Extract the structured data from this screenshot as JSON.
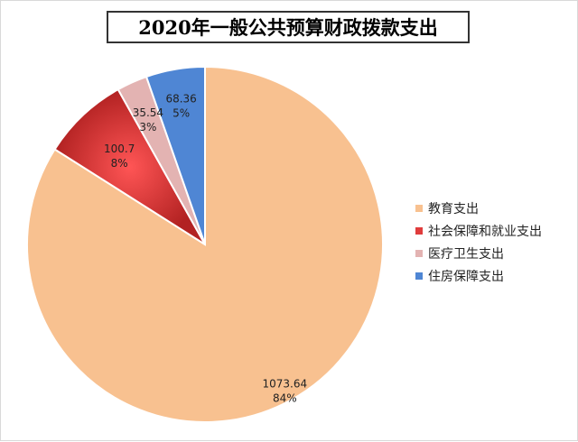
{
  "chart_data": {
    "type": "pie",
    "title": "2020年一般公共预算财政拨款支出",
    "categories": [
      "教育支出",
      "社会保障和就业支出",
      "医疗卫生支出",
      "住房保障支出"
    ],
    "values": [
      1073.64,
      100.7,
      35.54,
      68.36
    ],
    "value_labels": [
      "1073.64",
      "100.7",
      "35.54",
      "68.36"
    ],
    "percent_labels": [
      "84%",
      "8%",
      "3%",
      "5%"
    ],
    "colors": [
      "#f8c190",
      "#e03c3c",
      "#e3b3b2",
      "#4f86d4"
    ],
    "legend_position": "right"
  }
}
